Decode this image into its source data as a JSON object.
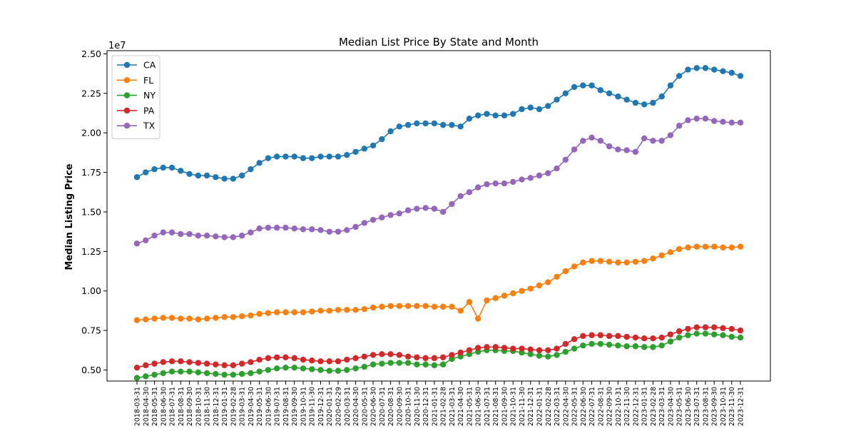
{
  "chart_data": {
    "type": "line",
    "title": "Median List Price By State and Month",
    "xlabel": "",
    "ylabel": "Median Listing Price",
    "y_scale_label": "1e7",
    "ylim": [
      0.43,
      2.52
    ],
    "yticks": [
      0.5,
      0.75,
      1.0,
      1.25,
      1.5,
      1.75,
      2.0,
      2.25,
      2.5
    ],
    "ytick_labels": [
      "0.50",
      "0.75",
      "1.00",
      "1.25",
      "1.50",
      "1.75",
      "2.00",
      "2.25",
      "2.50"
    ],
    "grid": false,
    "legend_position": "top-left",
    "x": [
      "2018-03-31",
      "2018-04-30",
      "2018-05-31",
      "2018-06-30",
      "2018-07-31",
      "2018-08-31",
      "2018-09-30",
      "2018-10-31",
      "2018-11-30",
      "2018-12-31",
      "2019-01-31",
      "2019-02-28",
      "2019-03-31",
      "2019-04-30",
      "2019-05-31",
      "2019-06-30",
      "2019-07-31",
      "2019-08-31",
      "2019-09-30",
      "2019-10-31",
      "2019-11-30",
      "2019-12-31",
      "2020-01-31",
      "2020-02-29",
      "2020-03-31",
      "2020-04-30",
      "2020-05-31",
      "2020-06-30",
      "2020-07-31",
      "2020-08-31",
      "2020-09-30",
      "2020-10-31",
      "2020-11-30",
      "2020-12-31",
      "2021-01-31",
      "2021-02-28",
      "2021-03-31",
      "2021-04-30",
      "2021-05-31",
      "2021-06-30",
      "2021-07-31",
      "2021-08-31",
      "2021-09-30",
      "2021-10-31",
      "2021-11-30",
      "2021-12-31",
      "2022-01-31",
      "2022-02-28",
      "2022-03-31",
      "2022-04-30",
      "2022-05-31",
      "2022-06-30",
      "2022-07-31",
      "2022-08-31",
      "2022-09-30",
      "2022-10-31",
      "2022-11-30",
      "2022-12-31",
      "2023-01-31",
      "2023-02-28",
      "2023-03-31",
      "2023-04-30",
      "2023-05-31",
      "2023-06-30",
      "2023-07-31",
      "2023-08-31",
      "2023-09-30",
      "2023-10-31",
      "2023-11-30",
      "2023-12-31"
    ],
    "series": [
      {
        "name": "CA",
        "color": "#1f77b4",
        "values": [
          1.72,
          1.75,
          1.77,
          1.78,
          1.78,
          1.76,
          1.74,
          1.73,
          1.73,
          1.72,
          1.71,
          1.71,
          1.73,
          1.77,
          1.81,
          1.84,
          1.85,
          1.85,
          1.85,
          1.84,
          1.84,
          1.85,
          1.85,
          1.85,
          1.86,
          1.88,
          1.9,
          1.92,
          1.96,
          2.01,
          2.04,
          2.05,
          2.06,
          2.06,
          2.06,
          2.05,
          2.05,
          2.04,
          2.09,
          2.11,
          2.12,
          2.11,
          2.11,
          2.12,
          2.15,
          2.16,
          2.15,
          2.17,
          2.21,
          2.25,
          2.29,
          2.3,
          2.3,
          2.27,
          2.25,
          2.23,
          2.21,
          2.19,
          2.18,
          2.19,
          2.23,
          2.3,
          2.36,
          2.4,
          2.41,
          2.41,
          2.4,
          2.39,
          2.38,
          2.36
        ]
      },
      {
        "name": "FL",
        "color": "#ff7f0e",
        "values": [
          0.815,
          0.82,
          0.825,
          0.83,
          0.83,
          0.825,
          0.825,
          0.82,
          0.825,
          0.83,
          0.835,
          0.835,
          0.84,
          0.845,
          0.855,
          0.86,
          0.865,
          0.865,
          0.865,
          0.865,
          0.87,
          0.875,
          0.875,
          0.88,
          0.88,
          0.88,
          0.885,
          0.895,
          0.9,
          0.905,
          0.905,
          0.905,
          0.905,
          0.905,
          0.9,
          0.9,
          0.9,
          0.875,
          0.93,
          0.825,
          0.94,
          0.955,
          0.97,
          0.985,
          1.0,
          1.015,
          1.035,
          1.055,
          1.09,
          1.125,
          1.155,
          1.18,
          1.19,
          1.19,
          1.185,
          1.18,
          1.18,
          1.185,
          1.19,
          1.205,
          1.225,
          1.245,
          1.265,
          1.275,
          1.28,
          1.28,
          1.28,
          1.275,
          1.275,
          1.28
        ]
      },
      {
        "name": "NY",
        "color": "#2ca02c",
        "values": [
          0.45,
          0.46,
          0.47,
          0.48,
          0.49,
          0.49,
          0.49,
          0.485,
          0.48,
          0.475,
          0.47,
          0.47,
          0.475,
          0.48,
          0.49,
          0.5,
          0.51,
          0.515,
          0.515,
          0.51,
          0.505,
          0.5,
          0.495,
          0.495,
          0.5,
          0.51,
          0.52,
          0.535,
          0.54,
          0.545,
          0.545,
          0.545,
          0.535,
          0.535,
          0.53,
          0.535,
          0.57,
          0.585,
          0.6,
          0.615,
          0.625,
          0.625,
          0.62,
          0.62,
          0.61,
          0.6,
          0.59,
          0.585,
          0.595,
          0.615,
          0.635,
          0.655,
          0.665,
          0.665,
          0.66,
          0.655,
          0.65,
          0.65,
          0.645,
          0.645,
          0.655,
          0.68,
          0.705,
          0.72,
          0.73,
          0.73,
          0.725,
          0.72,
          0.71,
          0.705
        ]
      },
      {
        "name": "PA",
        "color": "#d62728",
        "values": [
          0.515,
          0.53,
          0.54,
          0.55,
          0.555,
          0.555,
          0.55,
          0.545,
          0.54,
          0.535,
          0.53,
          0.53,
          0.54,
          0.55,
          0.565,
          0.575,
          0.58,
          0.58,
          0.575,
          0.565,
          0.56,
          0.555,
          0.555,
          0.555,
          0.565,
          0.575,
          0.585,
          0.595,
          0.6,
          0.6,
          0.595,
          0.585,
          0.58,
          0.575,
          0.575,
          0.58,
          0.595,
          0.61,
          0.625,
          0.64,
          0.645,
          0.645,
          0.64,
          0.635,
          0.635,
          0.63,
          0.625,
          0.625,
          0.635,
          0.665,
          0.695,
          0.715,
          0.72,
          0.72,
          0.715,
          0.715,
          0.71,
          0.705,
          0.7,
          0.7,
          0.705,
          0.725,
          0.745,
          0.76,
          0.77,
          0.77,
          0.77,
          0.765,
          0.76,
          0.75
        ]
      },
      {
        "name": "TX",
        "color": "#9467bd",
        "values": [
          1.3,
          1.32,
          1.35,
          1.37,
          1.37,
          1.36,
          1.36,
          1.35,
          1.35,
          1.345,
          1.34,
          1.34,
          1.35,
          1.37,
          1.395,
          1.4,
          1.4,
          1.4,
          1.395,
          1.39,
          1.39,
          1.385,
          1.375,
          1.375,
          1.385,
          1.405,
          1.43,
          1.45,
          1.465,
          1.48,
          1.49,
          1.51,
          1.52,
          1.525,
          1.52,
          1.5,
          1.55,
          1.6,
          1.625,
          1.655,
          1.675,
          1.68,
          1.68,
          1.69,
          1.705,
          1.715,
          1.73,
          1.745,
          1.775,
          1.83,
          1.895,
          1.95,
          1.97,
          1.95,
          1.915,
          1.895,
          1.89,
          1.88,
          1.965,
          1.95,
          1.95,
          1.985,
          2.045,
          2.08,
          2.09,
          2.09,
          2.075,
          2.07,
          2.065,
          2.065
        ]
      }
    ]
  }
}
